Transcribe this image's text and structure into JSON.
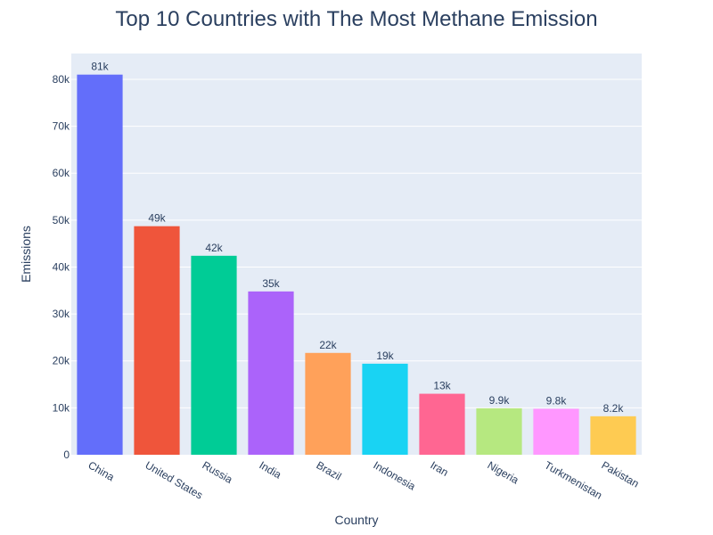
{
  "chart_data": {
    "type": "bar",
    "title": "Top 10 Countries with The Most Methane Emission",
    "xlabel": "Country",
    "ylabel": "Emissions",
    "categories": [
      "China",
      "United States",
      "Russia",
      "India",
      "Brazil",
      "Indonesia",
      "Iran",
      "Nigeria",
      "Turkmenistan",
      "Pakistan"
    ],
    "values": [
      81000,
      48700,
      42400,
      34800,
      21700,
      19400,
      13000,
      9900,
      9800,
      8200
    ],
    "data_labels": [
      "81k",
      "49k",
      "42k",
      "35k",
      "22k",
      "19k",
      "13k",
      "9.9k",
      "9.8k",
      "8.2k"
    ],
    "colors": [
      "#636efa",
      "#EF553B",
      "#00cc96",
      "#ab63fa",
      "#FFA15A",
      "#19d3f3",
      "#FF6692",
      "#B6E880",
      "#FF97FF",
      "#FECB52"
    ],
    "ylim": [
      0,
      85500
    ],
    "yticks": [
      0,
      10000,
      20000,
      30000,
      40000,
      50000,
      60000,
      70000,
      80000
    ],
    "ytick_labels": [
      "0",
      "10k",
      "20k",
      "30k",
      "40k",
      "50k",
      "60k",
      "70k",
      "80k"
    ],
    "grid": true,
    "plot_background": "#e5ecf6"
  }
}
